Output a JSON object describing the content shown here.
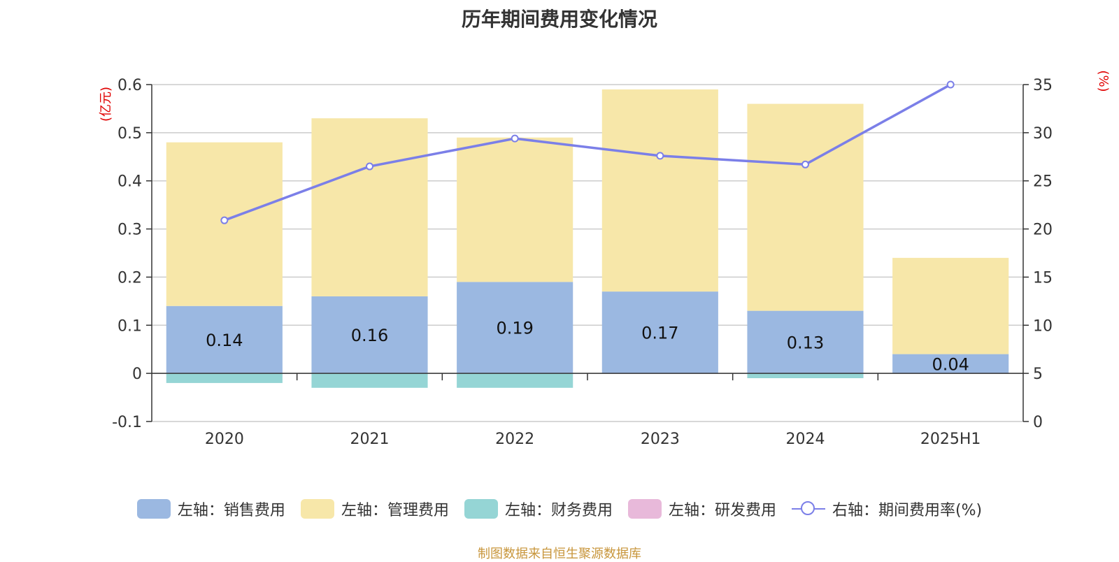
{
  "chart_data": {
    "type": "bar",
    "title": "历年期间费用变化情况",
    "categories": [
      "2020",
      "2021",
      "2022",
      "2023",
      "2024",
      "2025H1"
    ],
    "left_axis": {
      "unit_label": "(亿元)",
      "ylim": [
        -0.1,
        0.6
      ],
      "ticks": [
        "-0.1",
        "0",
        "0.1",
        "0.2",
        "0.3",
        "0.4",
        "0.5",
        "0.6"
      ]
    },
    "right_axis": {
      "unit_label": "(%)",
      "ylim": [
        0,
        35
      ],
      "ticks": [
        "0",
        "5",
        "10",
        "15",
        "20",
        "25",
        "30",
        "35"
      ]
    },
    "series": [
      {
        "name": "左轴：销售费用",
        "type": "stacked-bar",
        "color": "#9bb8e1",
        "values": [
          0.14,
          0.16,
          0.19,
          0.17,
          0.13,
          0.04
        ],
        "labels": [
          "0.14",
          "0.16",
          "0.19",
          "0.17",
          "0.13",
          "0.04"
        ]
      },
      {
        "name": "左轴：管理费用",
        "type": "stacked-bar",
        "color": "#f7e7a9",
        "values": [
          0.34,
          0.37,
          0.3,
          0.42,
          0.43,
          0.2
        ]
      },
      {
        "name": "左轴：财务费用",
        "type": "stacked-bar",
        "color": "#95d5d5",
        "values": [
          -0.02,
          -0.03,
          -0.03,
          0.0,
          -0.01,
          0.0
        ]
      },
      {
        "name": "左轴：研发费用",
        "type": "stacked-bar",
        "color": "#e8b9da",
        "values": [
          0,
          0,
          0,
          0,
          0,
          0
        ]
      },
      {
        "name": "右轴：期间费用率(%)",
        "type": "line",
        "color": "#7b7fe8",
        "values": [
          20.9,
          26.5,
          29.4,
          27.6,
          26.7,
          35.0
        ]
      }
    ],
    "grid": true,
    "legend_position": "bottom"
  },
  "source_note": "制图数据来自恒生聚源数据库"
}
